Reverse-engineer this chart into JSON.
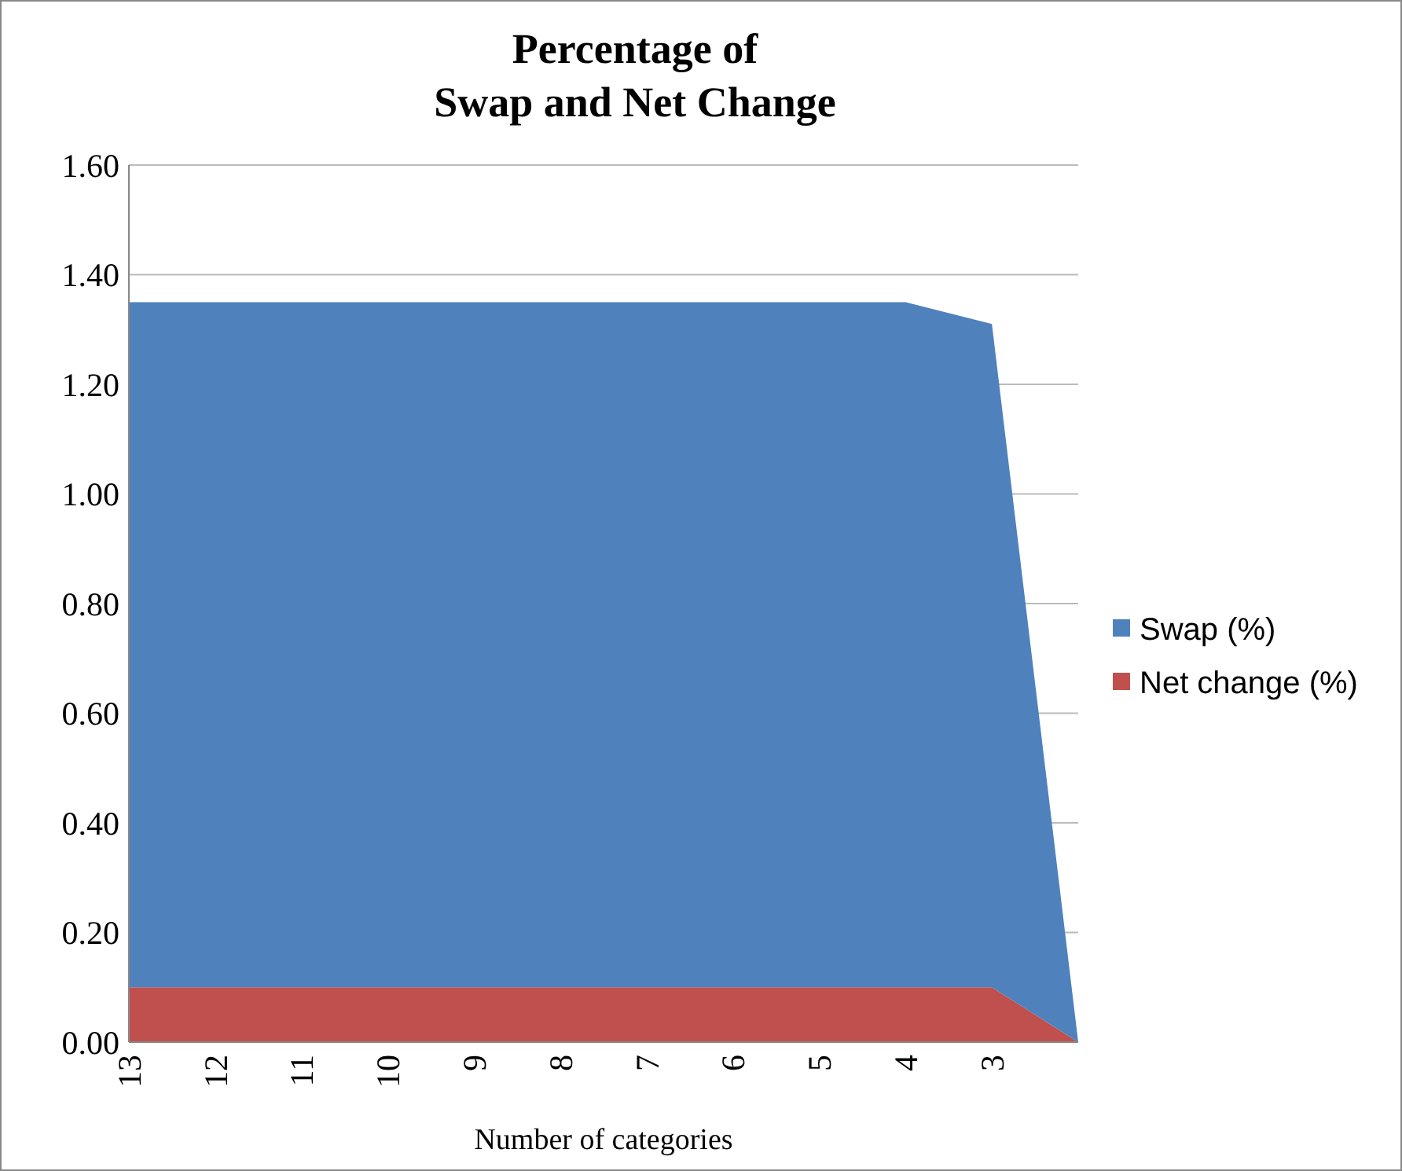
{
  "chart_data": {
    "type": "area",
    "title": "Percentage of\nSwap and Net Change",
    "xlabel": "Number of categories",
    "stacked": true,
    "categories": [
      "13",
      "12",
      "11",
      "10",
      "9",
      "8",
      "7",
      "6",
      "5",
      "4",
      "3",
      null
    ],
    "series": [
      {
        "name": "Net change (%)",
        "color": "#c0504d",
        "values": [
          0.1,
          0.1,
          0.1,
          0.1,
          0.1,
          0.1,
          0.1,
          0.1,
          0.1,
          0.1,
          0.1,
          0
        ]
      },
      {
        "name": "Swap (%)",
        "color": "#4f81bd",
        "values": [
          1.25,
          1.25,
          1.25,
          1.25,
          1.25,
          1.25,
          1.25,
          1.25,
          1.25,
          1.25,
          1.21,
          0
        ]
      }
    ],
    "ylim": [
      0,
      1.6
    ],
    "yticks": [
      {
        "value": 0,
        "label": "0.00"
      },
      {
        "value": 0.2,
        "label": "0.20"
      },
      {
        "value": 0.4,
        "label": "0.40"
      },
      {
        "value": 0.6,
        "label": "0.60"
      },
      {
        "value": 0.8,
        "label": "0.80"
      },
      {
        "value": 1,
        "label": "1.00"
      },
      {
        "value": 1.2,
        "label": "1.20"
      },
      {
        "value": 1.4,
        "label": "1.40"
      },
      {
        "value": 1.6,
        "label": "1.60"
      }
    ],
    "grid": "y",
    "legend": "right"
  }
}
